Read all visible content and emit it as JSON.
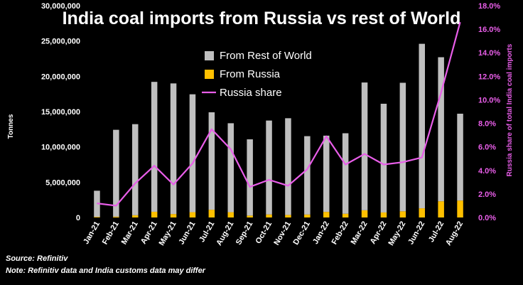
{
  "chart_data": {
    "type": "bar+line",
    "title": "India coal imports from Russia vs rest of World",
    "ylabel": "Tonnes",
    "y2label": "Russia share of total India coal imports",
    "categories": [
      "Jan-21",
      "Feb-21",
      "Mar-21",
      "Apr-21",
      "May-21",
      "Jun-21",
      "Jul-21",
      "Aug-21",
      "Sep-21",
      "Oct-21",
      "Nov-21",
      "Dec-21",
      "Jan-22",
      "Feb-22",
      "Mar-22",
      "Apr-22",
      "May-22",
      "Jun-22",
      "Jul-22",
      "Aug-22"
    ],
    "series": [
      {
        "name": "From Rest of World",
        "kind": "stacked-bar",
        "color": "#bfbfbf",
        "values": [
          3700000,
          12300000,
          12900000,
          18400000,
          18500000,
          16700000,
          13800000,
          12600000,
          10800000,
          13300000,
          13700000,
          11100000,
          10800000,
          11400000,
          18100000,
          15400000,
          18200000,
          23300000,
          20400000,
          12300000
        ]
      },
      {
        "name": "From Russia",
        "kind": "stacked-bar",
        "color": "#ffc000",
        "values": [
          90000,
          120000,
          320000,
          810000,
          490000,
          750000,
          1100000,
          750000,
          270000,
          430000,
          360000,
          420000,
          790000,
          530000,
          1020000,
          710000,
          880000,
          1300000,
          2300000,
          2400000
        ]
      },
      {
        "name": "Russia share",
        "kind": "line",
        "axis": "right",
        "color": "#e95ee9",
        "values": [
          1.2,
          1.0,
          2.9,
          4.4,
          2.8,
          4.6,
          7.5,
          5.8,
          2.6,
          3.2,
          2.7,
          4.1,
          6.9,
          4.5,
          5.4,
          4.5,
          4.7,
          5.1,
          10.6,
          16.6
        ]
      }
    ],
    "ylim": [
      0,
      30000000
    ],
    "yticks": [
      "0",
      "5,000,000",
      "10,000,000",
      "15,000,000",
      "20,000,000",
      "25,000,000",
      "30,000,000"
    ],
    "y2lim": [
      0,
      18
    ],
    "y2ticks": [
      "0.0%",
      "2.0%",
      "4.0%",
      "6.0%",
      "8.0%",
      "10.0%",
      "12.0%",
      "14.0%",
      "16.0%",
      "18.0%"
    ],
    "legend_position": "top-center"
  },
  "footer": {
    "source": "Source: Refinitiv",
    "note": "Note: Refinitiv data and India customs data may differ"
  }
}
